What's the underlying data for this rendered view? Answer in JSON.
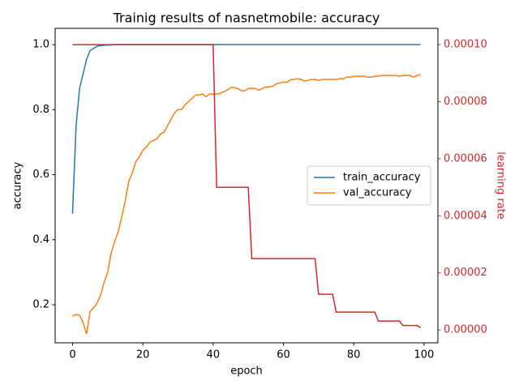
{
  "chart_data": {
    "type": "line",
    "title": "Trainig results of nasnetmobile: accuracy",
    "xlabel": "epoch",
    "ylabel": "accuracy",
    "y2label": "learning rate",
    "xlim": [
      -4.95,
      103.95
    ],
    "xticks": [
      0,
      20,
      40,
      60,
      80,
      100
    ],
    "ylim": [
      0.083,
      1.05
    ],
    "yticks": [
      0.2,
      0.4,
      0.6,
      0.8,
      {
        "value": 1.0,
        "label": "1.0"
      }
    ],
    "y2lim": [
      -4.5e-06,
      0.0001057
    ],
    "y2ticks": [
      {
        "value": 0,
        "label": "0.00000"
      },
      {
        "value": 2e-05,
        "label": "0.00002"
      },
      {
        "value": 4e-05,
        "label": "0.00004"
      },
      {
        "value": 6e-05,
        "label": "0.00006"
      },
      {
        "value": 8e-05,
        "label": "0.00008"
      },
      {
        "value": 0.0001,
        "label": "0.00010"
      }
    ],
    "y2color": "#d62728",
    "legend_loc": "center right",
    "x": [
      0,
      1,
      2,
      3,
      4,
      5,
      6,
      7,
      8,
      9,
      10,
      11,
      12,
      13,
      14,
      15,
      16,
      17,
      18,
      19,
      20,
      21,
      22,
      23,
      24,
      25,
      26,
      27,
      28,
      29,
      30,
      31,
      32,
      33,
      34,
      35,
      36,
      37,
      38,
      39,
      40,
      41,
      42,
      43,
      44,
      45,
      46,
      47,
      48,
      49,
      50,
      51,
      52,
      53,
      54,
      55,
      56,
      57,
      58,
      59,
      60,
      61,
      62,
      63,
      64,
      65,
      66,
      67,
      68,
      69,
      70,
      71,
      72,
      73,
      74,
      75,
      76,
      77,
      78,
      79,
      80,
      81,
      82,
      83,
      84,
      85,
      86,
      87,
      88,
      89,
      90,
      91,
      92,
      93,
      94,
      95,
      96,
      97,
      98,
      99
    ],
    "series": [
      {
        "name": "train_accuracy",
        "color": "#1f77b4",
        "values": [
          0.48,
          0.75,
          0.865,
          0.91,
          0.955,
          0.982,
          0.988,
          0.995,
          0.997,
          0.998,
          0.999,
          0.999,
          1,
          1,
          1,
          1,
          1,
          1,
          1,
          1,
          1,
          1,
          1,
          1,
          1,
          1,
          1,
          1,
          1,
          1,
          1,
          1,
          1,
          1,
          1,
          1,
          1,
          1,
          1,
          1,
          1,
          1,
          1,
          1,
          1,
          1,
          1,
          1,
          1,
          1,
          1,
          1,
          1,
          1,
          1,
          1,
          1,
          1,
          1,
          1,
          1,
          1,
          1,
          1,
          1,
          1,
          1,
          1,
          1,
          1,
          1,
          1,
          1,
          1,
          1,
          1,
          1,
          1,
          1,
          1,
          1,
          1,
          1,
          1,
          1,
          1,
          1,
          1,
          1,
          1,
          1,
          1,
          1,
          1,
          1,
          1,
          1,
          1,
          1,
          1
        ]
      },
      {
        "name": "val_accuracy",
        "color": "#ff7f0e",
        "values": [
          0.165,
          0.17,
          0.168,
          0.145,
          0.11,
          0.18,
          0.19,
          0.205,
          0.23,
          0.27,
          0.3,
          0.36,
          0.395,
          0.425,
          0.47,
          0.52,
          0.58,
          0.605,
          0.64,
          0.655,
          0.675,
          0.685,
          0.7,
          0.705,
          0.71,
          0.725,
          0.73,
          0.75,
          0.77,
          0.79,
          0.8,
          0.8,
          0.815,
          0.825,
          0.835,
          0.845,
          0.845,
          0.848,
          0.84,
          0.848,
          0.848,
          0.848,
          0.85,
          0.855,
          0.86,
          0.868,
          0.868,
          0.865,
          0.858,
          0.858,
          0.865,
          0.866,
          0.865,
          0.86,
          0.865,
          0.87,
          0.87,
          0.872,
          0.88,
          0.882,
          0.885,
          0.884,
          0.892,
          0.893,
          0.895,
          0.893,
          0.888,
          0.89,
          0.893,
          0.893,
          0.89,
          0.893,
          0.893,
          0.893,
          0.893,
          0.893,
          0.895,
          0.895,
          0.9,
          0.9,
          0.902,
          0.903,
          0.903,
          0.903,
          0.9,
          0.9,
          0.903,
          0.903,
          0.905,
          0.905,
          0.905,
          0.905,
          0.905,
          0.903,
          0.905,
          0.905,
          0.905,
          0.9,
          0.905,
          0.908
        ]
      },
      {
        "color": "#d62728",
        "axis": "y2",
        "values": [
          0.0001,
          0.0001,
          0.0001,
          0.0001,
          0.0001,
          0.0001,
          0.0001,
          0.0001,
          0.0001,
          0.0001,
          0.0001,
          0.0001,
          0.0001,
          0.0001,
          0.0001,
          0.0001,
          0.0001,
          0.0001,
          0.0001,
          0.0001,
          0.0001,
          0.0001,
          0.0001,
          0.0001,
          0.0001,
          0.0001,
          0.0001,
          0.0001,
          0.0001,
          0.0001,
          0.0001,
          0.0001,
          0.0001,
          0.0001,
          0.0001,
          0.0001,
          0.0001,
          0.0001,
          0.0001,
          0.0001,
          0.0001,
          5e-05,
          5e-05,
          5e-05,
          5e-05,
          5e-05,
          5e-05,
          5e-05,
          5e-05,
          5e-05,
          5e-05,
          2.5e-05,
          2.5e-05,
          2.5e-05,
          2.5e-05,
          2.5e-05,
          2.5e-05,
          2.5e-05,
          2.5e-05,
          2.5e-05,
          2.5e-05,
          2.5e-05,
          2.5e-05,
          2.5e-05,
          2.5e-05,
          2.5e-05,
          2.5e-05,
          2.5e-05,
          2.5e-05,
          2.5e-05,
          1.25e-05,
          1.25e-05,
          1.25e-05,
          1.25e-05,
          1.25e-05,
          6.25e-06,
          6.25e-06,
          6.25e-06,
          6.25e-06,
          6.25e-06,
          6.25e-06,
          6.25e-06,
          6.25e-06,
          6.25e-06,
          6.25e-06,
          6.25e-06,
          6.25e-06,
          3.125e-06,
          3.125e-06,
          3.125e-06,
          3.125e-06,
          3.125e-06,
          3.125e-06,
          3.125e-06,
          1.5625e-06,
          1.5625e-06,
          1.5625e-06,
          1.5625e-06,
          1.5625e-06,
          7.8125e-07
        ]
      }
    ]
  }
}
